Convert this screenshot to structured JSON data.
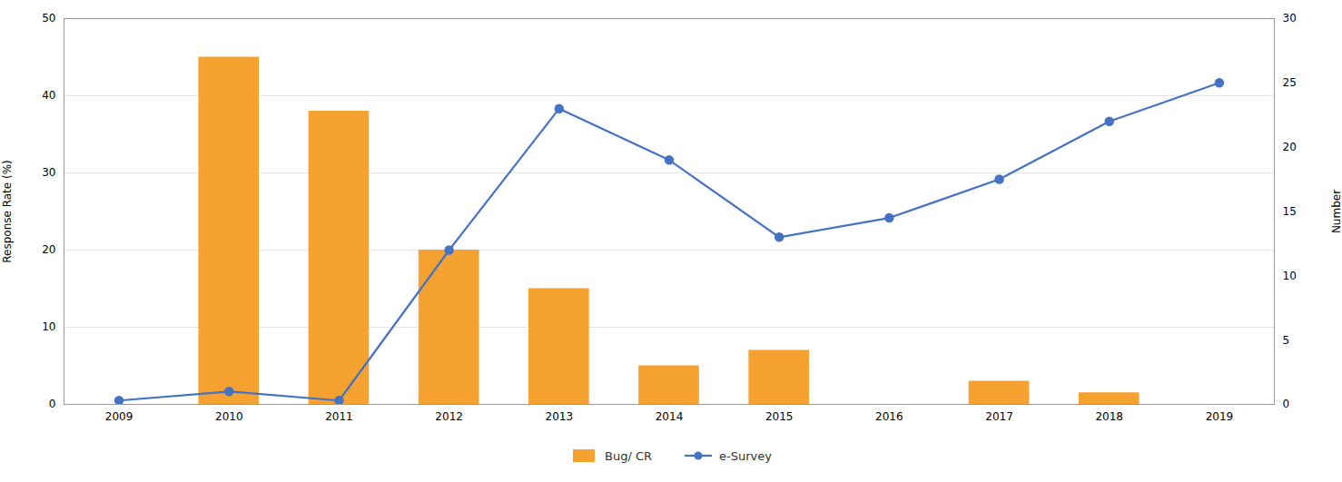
{
  "chart_data": {
    "type": "bar",
    "x": [
      2009,
      2010,
      2011,
      2012,
      2013,
      2014,
      2015,
      2016,
      2017,
      2018,
      2019
    ],
    "xlim": [
      2008.5,
      2019.5
    ],
    "xticks": [
      2009,
      2010,
      2011,
      2012,
      2013,
      2014,
      2015,
      2016,
      2017,
      2018,
      2019
    ],
    "ylabel": "Response Rate (%)",
    "y2label": "Number",
    "ylim": [
      0,
      50
    ],
    "yticks": [
      0,
      10,
      20,
      30,
      40,
      50
    ],
    "y2lim": [
      0,
      30
    ],
    "y2ticks": [
      0,
      5,
      10,
      15,
      20,
      25,
      30
    ],
    "grid": true,
    "legend": "bottom",
    "series": [
      {
        "name": "Bug/ CR",
        "type": "bar",
        "color": "#f5a230",
        "values": [
          0,
          45,
          38,
          20,
          15,
          5,
          7,
          0,
          3,
          1.5,
          0
        ]
      },
      {
        "name": "e-Survey",
        "type": "line",
        "axis": "y2",
        "color": "#4472c4",
        "marker": "circle",
        "values": [
          0.3,
          1,
          0.3,
          12,
          23,
          19,
          13,
          14.5,
          17.5,
          22,
          25
        ]
      }
    ]
  }
}
